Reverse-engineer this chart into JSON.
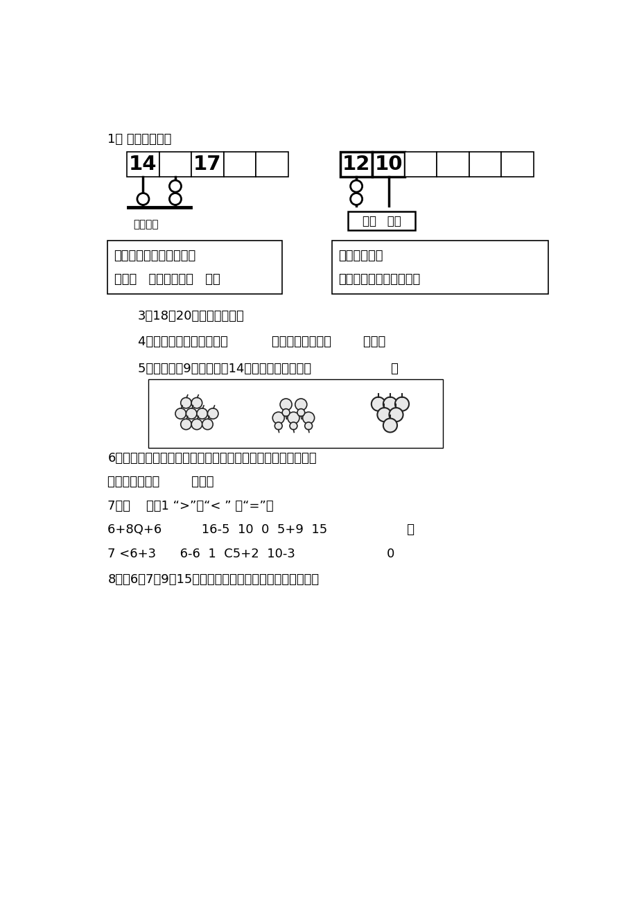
{
  "bg_color": "#ffffff",
  "text_color": "#000000",
  "title_q1": "1、 按规律填数。",
  "left_table_cells": [
    "14",
    "",
    "17",
    "",
    ""
  ],
  "right_table_cells": [
    "12",
    "10",
    "",
    "",
    "",
    ""
  ],
  "left_label": "十位个位",
  "right_label": "十位   个位",
  "box1_line1": "有（）个十和（）个一，",
  "box1_line2": "得数：   （），读作：   （）",
  "box2_line1": "有（）个十。",
  "box2_line2": "写作：（），读作：（）",
  "q3": "3、18和20中间的数是（）",
  "q4": "4、从右边起，第一位是（           ）位，第二位是（        ）位。",
  "q5": "5、一个数比9大，但又比14小，这个数可能是（                    ）",
  "q6": "6、苹果比梨多（）个，桃比苹果少（）个，梨比桃多（）个，",
  "q6b": "三种水果一共（        ）个。",
  "q7a": "7、在    里。1 “>”、“< ” 或“=”。",
  "q7b": "6+8Q+6          16-5  10  0  5+9  15                    。",
  "q7c": "7 <6+3      6-6  1  C5+2  10-3                       0",
  "q8": "8、从6、7、9、15四个数中选出三个数，列出四道算式。"
}
